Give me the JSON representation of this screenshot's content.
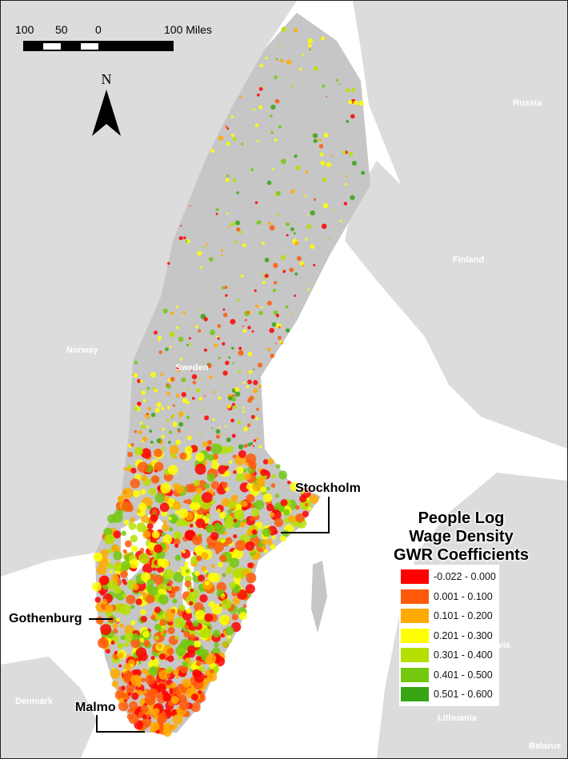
{
  "scale_bar": {
    "labels": [
      "100",
      "50",
      "0",
      "100 Miles"
    ]
  },
  "north_arrow": {
    "label": "N"
  },
  "countries": {
    "russia": "Russia",
    "finland": "Finland",
    "norway": "Norway",
    "sweden": "Sweden",
    "latvia": "Latvia",
    "lithuania": "Lithuania",
    "denmark": "Denmark",
    "belarus": "Belarus"
  },
  "cities": {
    "stockholm": "Stockholm",
    "gothenburg": "Gothenburg",
    "malmo": "Malmo"
  },
  "legend": {
    "title_lines": [
      "People Log",
      "Wage Density",
      "GWR Coefficients"
    ],
    "items": [
      {
        "label": "-0.022 - 0.000",
        "color": "#ff0000"
      },
      {
        "label": "0.001 - 0.100",
        "color": "#ff5a0a"
      },
      {
        "label": "0.101 - 0.200",
        "color": "#ffaa00"
      },
      {
        "label": "0.201 - 0.300",
        "color": "#ffff00"
      },
      {
        "label": "0.301 - 0.400",
        "color": "#b4e100"
      },
      {
        "label": "0.401 - 0.500",
        "color": "#73c80f"
      },
      {
        "label": "0.501 - 0.600",
        "color": "#37a514"
      }
    ]
  },
  "colors": {
    "sea": "#ffffff",
    "land": "#dcdcdc",
    "sweden": "#c6c6c6"
  }
}
